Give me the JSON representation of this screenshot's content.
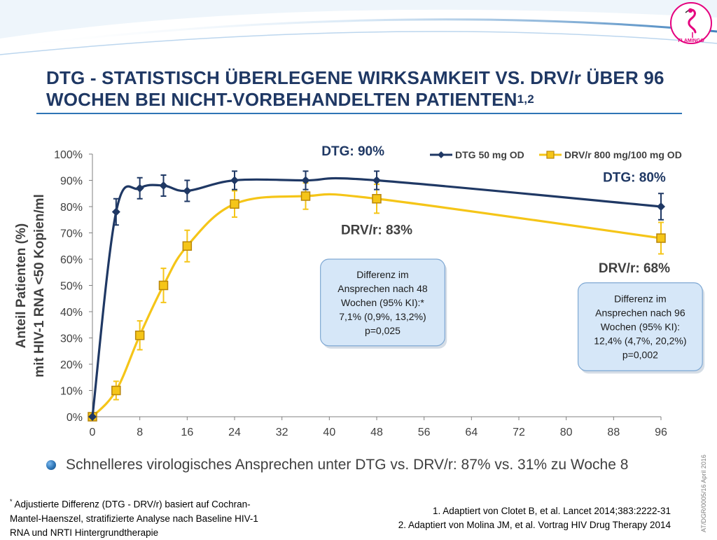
{
  "slide": {
    "title_main": "DTG - STATISTISCH ÜBERLEGENE WIRKSAMKEIT VS. DRV/r ÜBER 96 WOCHEN BEI NICHT-VORBEHANDELTEN PATIENTEN",
    "title_superscript": "1,2",
    "logo_text": "FLAMINGO",
    "bullet": "Schnelleres virologisches Ansprechen unter DTG vs. DRV/r: 87% vs. 31% zu Woche 8",
    "footnote_marker": "*",
    "footnote": "Adjustierte Differenz (DTG - DRV/r) basiert auf Cochran-Mantel-Haenszel, stratifizierte Analyse nach Baseline HIV-1 RNA und NRTI Hintergrundtherapie",
    "references": [
      "1. Adaptiert von Clotet B, et al. Lancet 2014;383:2222-31",
      "2. Adaptiert von Molina JM, et al. Vortrag HIV Drug Therapy 2014"
    ],
    "side_code": "AT/DGR/0005/16  April 2016"
  },
  "colors": {
    "title": "#1f3864",
    "dtg": "#1f3864",
    "drv": "#f5c518",
    "drv_marker_border": "#b8860b",
    "callout_fill": "#d6e7f8",
    "callout_border": "#7fa8d3",
    "rule": "#2e75b6"
  },
  "chart_data": {
    "type": "line",
    "ylabel_line1": "Anteil Patienten (%)",
    "ylabel_line2": "mit HIV-1 RNA <50 Kopien/ml",
    "xlim": [
      0,
      96
    ],
    "ylim": [
      0,
      100
    ],
    "x_ticks": [
      "0",
      "8",
      "16",
      "24",
      "32",
      "40",
      "48",
      "56",
      "64",
      "72",
      "80",
      "88",
      "96"
    ],
    "y_ticks": [
      "0%",
      "10%",
      "20%",
      "30%",
      "40%",
      "50%",
      "60%",
      "70%",
      "80%",
      "90%",
      "100%"
    ],
    "legend_position": "top-right",
    "series": [
      {
        "name": "DTG 50 mg OD",
        "key": "dtg",
        "x": [
          0,
          4,
          8,
          12,
          16,
          24,
          36,
          48,
          96
        ],
        "y": [
          0,
          78,
          87,
          88,
          86,
          90,
          90,
          90,
          80
        ],
        "err": [
          0,
          5,
          4,
          4,
          4,
          3.5,
          3.5,
          3.5,
          5
        ]
      },
      {
        "name": "DRV/r 800 mg/100 mg OD",
        "key": "drv",
        "x": [
          0,
          4,
          8,
          12,
          16,
          24,
          36,
          48,
          96
        ],
        "y": [
          0,
          10,
          31,
          50,
          65,
          81,
          84,
          83,
          68
        ],
        "err": [
          0,
          3.5,
          5.5,
          6.5,
          6,
          5,
          5,
          5.5,
          6
        ]
      }
    ],
    "annotations": [
      {
        "text": "DTG: 90%",
        "series": "dtg",
        "x": 44,
        "y": 99.5
      },
      {
        "text": "DTG: 80%",
        "series": "dtg",
        "x": 91.5,
        "y": 89.5
      },
      {
        "text": "DRV/r: 83%",
        "series": "drv",
        "x": 48,
        "y": 69.5
      },
      {
        "text": "DRV/r: 68%",
        "series": "drv",
        "x": 91.5,
        "y": 55
      }
    ],
    "callouts": [
      {
        "lines": [
          "Differenz im",
          "Ansprechen nach 48",
          "Wochen (95% KI):*",
          "7,1% (0,9%, 13,2%)",
          "p=0,025"
        ],
        "x0": 38.5,
        "x1": 59.5,
        "y_top": 60,
        "y_bottom": 27
      },
      {
        "lines": [
          "Differenz im",
          "Ansprechen nach 96",
          "Wochen (95% KI):",
          "12,4% (4,7%, 20,2%)",
          "p=0,002"
        ],
        "x0": 82,
        "x1": 103,
        "y_top": 51,
        "y_bottom": 17.5
      }
    ]
  }
}
